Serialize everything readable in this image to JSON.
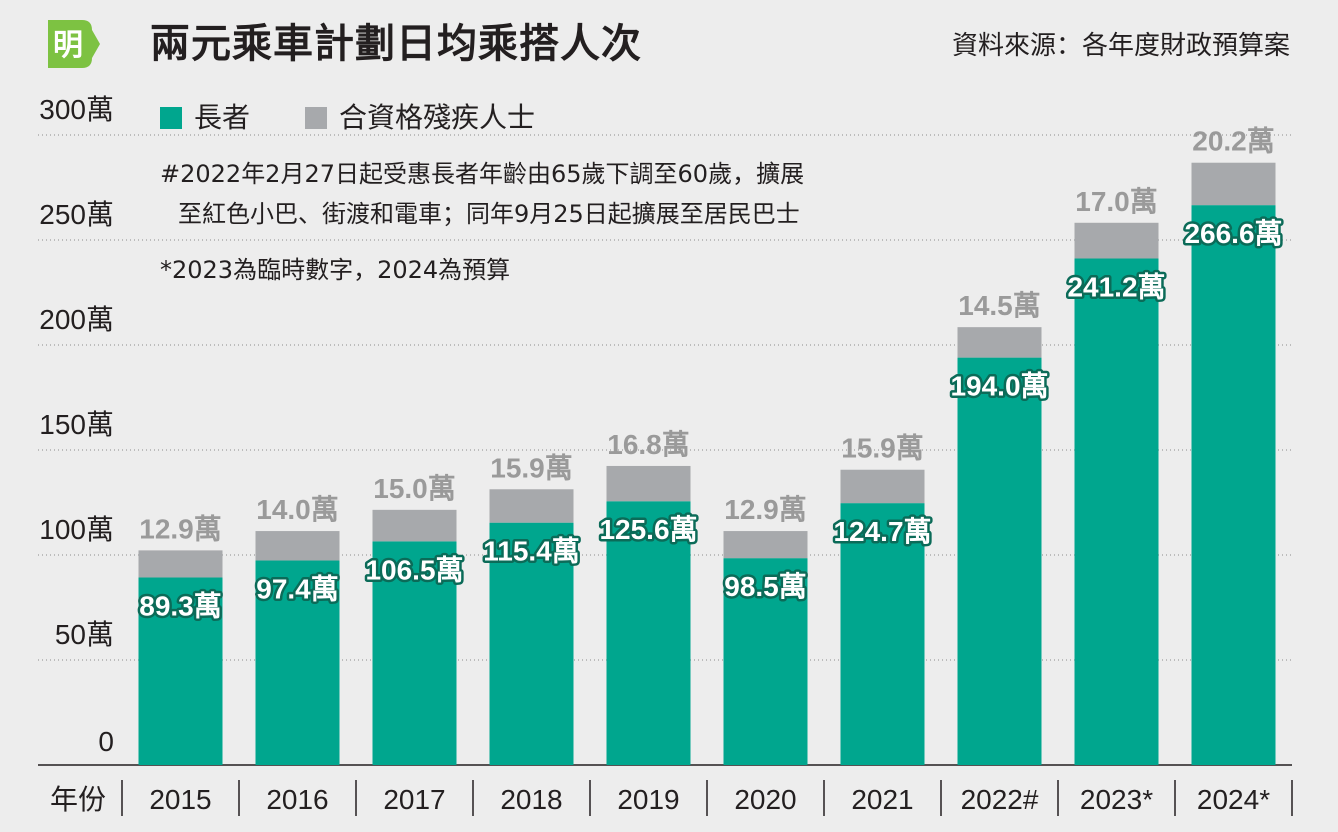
{
  "header": {
    "logo_char": "明",
    "title": "兩元乘車計劃日均乘搭人次",
    "source": "資料來源：各年度財政預算案"
  },
  "legend": {
    "elderly": "長者",
    "disabled": "合資格殘疾人士"
  },
  "notes": {
    "line1": "#2022年2月27日起受惠長者年齡由65歲下調至60歲，擴展",
    "line2": "至紅色小巴、街渡和電車；同年9月25日起擴展至居民巴士",
    "line3": "*2023為臨時數字，2024為預算"
  },
  "colors": {
    "elderly": "#00a68e",
    "disabled": "#a7a9ac",
    "background": "#ededed"
  },
  "chart_data": {
    "type": "bar",
    "stacked": true,
    "title": "兩元乘車計劃日均乘搭人次",
    "xlabel": "年份",
    "ylabel": "",
    "unit": "萬",
    "ylim": [
      0,
      300
    ],
    "yticks": [
      0,
      50,
      100,
      150,
      200,
      250,
      300
    ],
    "ytick_labels": [
      "0",
      "50萬",
      "100萬",
      "150萬",
      "200萬",
      "250萬",
      "300萬"
    ],
    "categories": [
      "2015",
      "2016",
      "2017",
      "2018",
      "2019",
      "2020",
      "2021",
      "2022#",
      "2023*",
      "2024*"
    ],
    "series": [
      {
        "name": "長者",
        "values": [
          89.3,
          97.4,
          106.5,
          115.4,
          125.6,
          98.5,
          124.7,
          194.0,
          241.2,
          266.6
        ],
        "labels": [
          "89.3萬",
          "97.4萬",
          "106.5萬",
          "115.4萬",
          "125.6萬",
          "98.5萬",
          "124.7萬",
          "194.0萬",
          "241.2萬",
          "266.6萬"
        ]
      },
      {
        "name": "合資格殘疾人士",
        "values": [
          12.9,
          14.0,
          15.0,
          15.9,
          16.8,
          12.9,
          15.9,
          14.5,
          17.0,
          20.2
        ],
        "labels": [
          "12.9萬",
          "14.0萬",
          "15.0萬",
          "15.9萬",
          "16.8萬",
          "12.9萬",
          "15.9萬",
          "14.5萬",
          "17.0萬",
          "20.2萬"
        ]
      }
    ],
    "grid": true,
    "legend_position": "top-left"
  }
}
